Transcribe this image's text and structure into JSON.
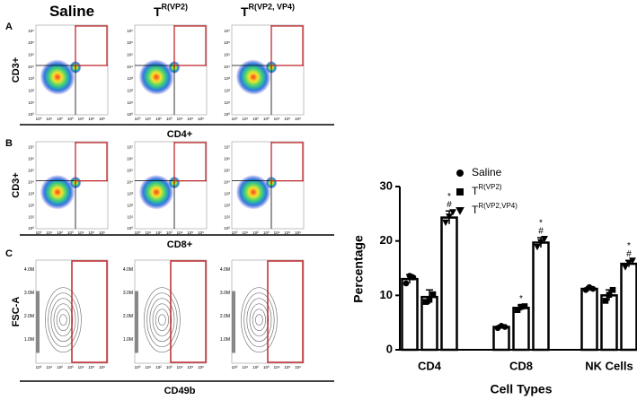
{
  "figure": {
    "panel_labels": [
      "A",
      "B",
      "C"
    ],
    "column_titles": [
      {
        "text": "Saline"
      },
      {
        "text": "T",
        "sup": "R(VP2)"
      },
      {
        "text": "T",
        "sup": "R(VP2, VP4)"
      }
    ],
    "rows": [
      {
        "y_label": "CD3+",
        "x_label": "CD4+"
      },
      {
        "y_label": "CD3+",
        "x_label": "CD8+"
      },
      {
        "y_label": "FSC-A",
        "x_label": "CD49b"
      }
    ],
    "log_ticks": [
      "10⁰",
      "10¹",
      "10²",
      "10³",
      "10⁴",
      "10⁵",
      "10⁶",
      "10⁷"
    ],
    "fsc_ticks": [
      "1.0M",
      "2.0M",
      "3.0M",
      "4.0M"
    ]
  },
  "chart_data": {
    "type": "bar",
    "x_label": "Cell Types",
    "y_label": "Percentage",
    "categories": [
      "CD4",
      "CD8",
      "NK Cells"
    ],
    "ylim": [
      0,
      30
    ],
    "yticks": [
      0,
      10,
      20,
      30
    ],
    "legend": "upper right",
    "series": [
      {
        "name": "Saline",
        "marker": "circle",
        "color": "#000000",
        "values": [
          13,
          4.2,
          11.2
        ],
        "errors": [
          0.8,
          0.3,
          0.4
        ],
        "points": [
          [
            12.2,
            13.6,
            13.3
          ],
          [
            4.0,
            4.4,
            4.2
          ],
          [
            11.0,
            11.5,
            11.2
          ]
        ],
        "annotations": [
          [],
          [],
          []
        ]
      },
      {
        "name": "T",
        "sup": "R(VP2)",
        "marker": "square",
        "color": "#000000",
        "values": [
          9.7,
          7.7,
          10
        ],
        "errors": [
          1.3,
          0.5,
          1.0
        ],
        "points": [
          [
            8.8,
            9.2,
            10.2
          ],
          [
            7.3,
            7.9,
            8.0
          ],
          [
            9.0,
            10.1,
            11.0
          ]
        ],
        "annotations": [
          [],
          [
            "*"
          ],
          []
        ]
      },
      {
        "name": "T",
        "sup": "R(VP2,VP4)",
        "marker": "triangle-down",
        "color": "#000000",
        "values": [
          24.3,
          19.7,
          15.8
        ],
        "errors": [
          1.2,
          0.9,
          0.6
        ],
        "points": [
          [
            23.4,
            24.5,
            25.3
          ],
          [
            18.9,
            19.8,
            20.4
          ],
          [
            15.2,
            16.0,
            16.4
          ]
        ],
        "annotations": [
          [
            "*",
            "#"
          ],
          [
            "*",
            "#"
          ],
          [
            "*",
            "#"
          ]
        ]
      }
    ]
  }
}
